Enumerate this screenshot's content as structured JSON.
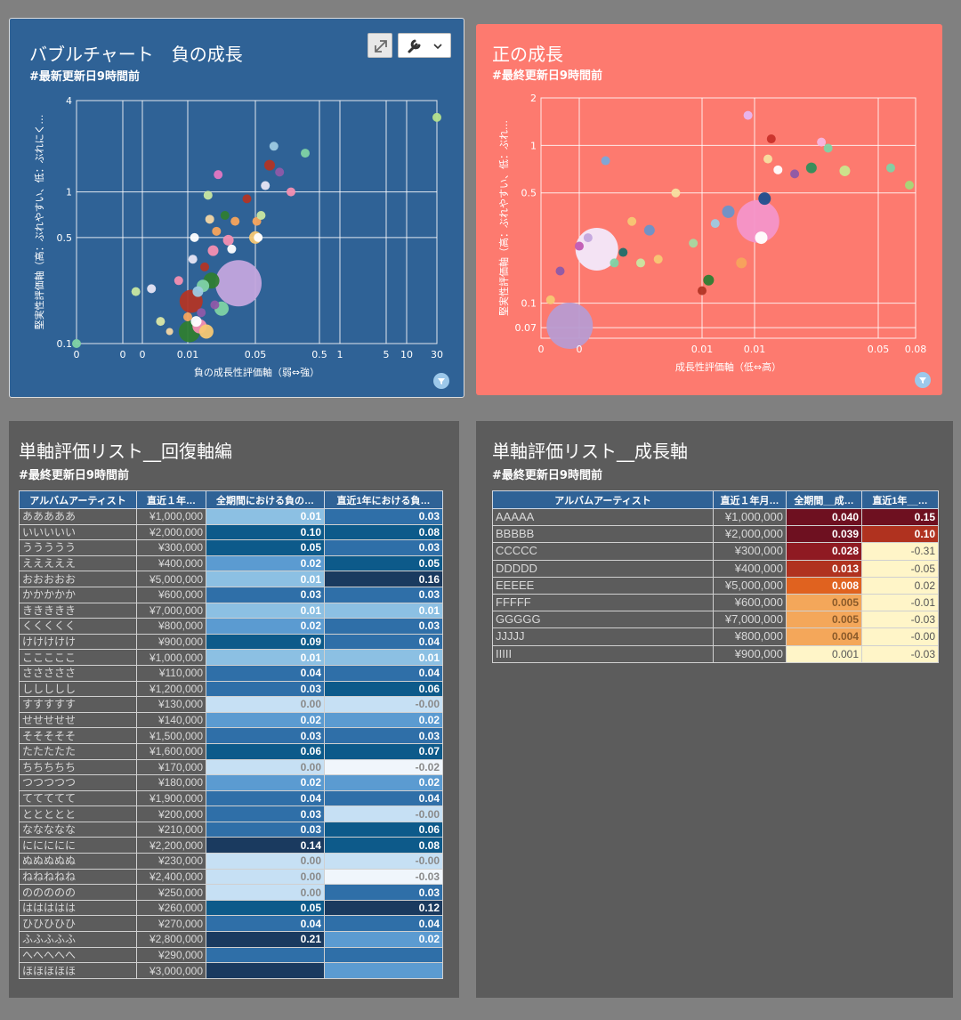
{
  "panels": {
    "negative": {
      "title": "バブルチャート　負の成長",
      "subtitle": "#最新更新日9時間前"
    },
    "positive": {
      "title": "正の成長",
      "subtitle": "#最終更新日9時間前"
    },
    "recovery": {
      "title": "単軸評価リスト__回復軸編",
      "subtitle": "#最終更新日9時間前"
    },
    "growth": {
      "title": "単軸評価リスト__成長軸",
      "subtitle": "#最終更新日9時間前"
    }
  },
  "icons": {
    "expand": "expand-icon",
    "wrench": "wrench-icon",
    "chevron": "chevron-down-icon",
    "filter": "filter-icon"
  },
  "chart_data": [
    {
      "type": "scatter",
      "title": "バブルチャート　負の成長",
      "xlabel": "負の成長性評価軸（弱⇔強）",
      "ylabel": "堅実性評価軸（高：ぶれやすい、低：ぶれにく…",
      "x_tick_labels": [
        "0",
        "0",
        "0",
        "0.01",
        "0.05",
        "0.5",
        "1",
        "5",
        "10",
        "30"
      ],
      "y_tick_labels": [
        "0.1",
        "0.5",
        "1",
        "4"
      ],
      "y_scale": "log",
      "grid": true,
      "background": "#2f6296",
      "points": [
        {
          "x": 0.0,
          "y": 0.1,
          "r": 5,
          "color": "#7fd3a4"
        },
        {
          "x": 0.004,
          "y": 0.22,
          "r": 5,
          "color": "#c9e7a1"
        },
        {
          "x": 0.006,
          "y": 0.23,
          "r": 5,
          "color": "#e7e5f4"
        },
        {
          "x": 0.007,
          "y": 0.14,
          "r": 5,
          "color": "#dbe7a6"
        },
        {
          "x": 0.008,
          "y": 0.12,
          "r": 4,
          "color": "#f3d6a4"
        },
        {
          "x": 0.009,
          "y": 0.26,
          "r": 5,
          "color": "#f48fb1"
        },
        {
          "x": 0.01,
          "y": 0.15,
          "r": 5,
          "color": "#f7a45c"
        },
        {
          "x": 0.011,
          "y": 0.12,
          "r": 12,
          "color": "#2f7d32"
        },
        {
          "x": 0.012,
          "y": 0.19,
          "r": 13,
          "color": "#b23525"
        },
        {
          "x": 0.013,
          "y": 0.36,
          "r": 5,
          "color": "#e7e5f4"
        },
        {
          "x": 0.014,
          "y": 0.5,
          "r": 5,
          "color": "#ffffff"
        },
        {
          "x": 0.015,
          "y": 0.14,
          "r": 6,
          "color": "#ffffff"
        },
        {
          "x": 0.016,
          "y": 0.22,
          "r": 6,
          "color": "#9ecae1"
        },
        {
          "x": 0.017,
          "y": 0.13,
          "r": 8,
          "color": "#f48fb1"
        },
        {
          "x": 0.018,
          "y": 0.16,
          "r": 5,
          "color": "#8e5aa8"
        },
        {
          "x": 0.019,
          "y": 0.24,
          "r": 7,
          "color": "#7fd3a4"
        },
        {
          "x": 0.02,
          "y": 0.32,
          "r": 5,
          "color": "#b23525"
        },
        {
          "x": 0.021,
          "y": 0.12,
          "r": 8,
          "color": "#f7c873"
        },
        {
          "x": 0.022,
          "y": 0.95,
          "r": 5,
          "color": "#c9e7a1"
        },
        {
          "x": 0.023,
          "y": 0.66,
          "r": 5,
          "color": "#f3d6a4"
        },
        {
          "x": 0.024,
          "y": 0.26,
          "r": 9,
          "color": "#2f7d32"
        },
        {
          "x": 0.025,
          "y": 0.41,
          "r": 6,
          "color": "#f48fb1"
        },
        {
          "x": 0.026,
          "y": 0.18,
          "r": 5,
          "color": "#8e5aa8"
        },
        {
          "x": 0.027,
          "y": 0.55,
          "r": 5,
          "color": "#f7a45c"
        },
        {
          "x": 0.028,
          "y": 1.3,
          "r": 5,
          "color": "#e377c2"
        },
        {
          "x": 0.03,
          "y": 0.17,
          "r": 8,
          "color": "#7fd3a4"
        },
        {
          "x": 0.032,
          "y": 0.7,
          "r": 5,
          "color": "#2f7d32"
        },
        {
          "x": 0.034,
          "y": 0.48,
          "r": 6,
          "color": "#f48fb1"
        },
        {
          "x": 0.036,
          "y": 0.42,
          "r": 5,
          "color": "#ffffff"
        },
        {
          "x": 0.038,
          "y": 0.64,
          "r": 5,
          "color": "#f7a45c"
        },
        {
          "x": 0.04,
          "y": 0.25,
          "r": 26,
          "color": "#c3a5dd"
        },
        {
          "x": 0.045,
          "y": 0.9,
          "r": 5,
          "color": "#b23525"
        },
        {
          "x": 0.05,
          "y": 0.5,
          "r": 7,
          "color": "#f7c873"
        },
        {
          "x": 0.06,
          "y": 0.64,
          "r": 5,
          "color": "#f7a45c"
        },
        {
          "x": 0.07,
          "y": 0.5,
          "r": 5,
          "color": "#ffffff"
        },
        {
          "x": 0.09,
          "y": 0.7,
          "r": 5,
          "color": "#c9e7a1"
        },
        {
          "x": 0.12,
          "y": 1.1,
          "r": 5,
          "color": "#e7e5f4"
        },
        {
          "x": 0.15,
          "y": 1.5,
          "r": 6,
          "color": "#b23525"
        },
        {
          "x": 0.18,
          "y": 2.0,
          "r": 5,
          "color": "#9ecae1"
        },
        {
          "x": 0.22,
          "y": 1.35,
          "r": 5,
          "color": "#8e5aa8"
        },
        {
          "x": 0.3,
          "y": 1.0,
          "r": 5,
          "color": "#f48fb1"
        },
        {
          "x": 0.4,
          "y": 1.8,
          "r": 5,
          "color": "#7fd3a4"
        },
        {
          "x": 30,
          "y": 3.1,
          "r": 5,
          "color": "#b5e28c"
        }
      ]
    },
    {
      "type": "scatter",
      "title": "正の成長",
      "xlabel": "成長性評価軸（低⇔高）",
      "ylabel": "堅実性評価軸（高：ぶれやすい、低：ぶれ…",
      "x_tick_labels": [
        "0",
        "0",
        "0.01",
        "0.01",
        "0.05",
        "0.08"
      ],
      "y_tick_labels": [
        "0.07",
        "0.1",
        "0.5",
        "1",
        "2"
      ],
      "y_scale": "log",
      "grid": true,
      "background": "#fd7a6f",
      "points": [
        {
          "x": 0.0005,
          "y": 0.105,
          "r": 5,
          "color": "#f7c873"
        },
        {
          "x": 0.001,
          "y": 0.16,
          "r": 5,
          "color": "#8e5aa8"
        },
        {
          "x": 0.0015,
          "y": 0.072,
          "r": 26,
          "color": "#b89bd1"
        },
        {
          "x": 0.002,
          "y": 0.23,
          "r": 5,
          "color": "#c158b3"
        },
        {
          "x": 0.0025,
          "y": 0.26,
          "r": 5,
          "color": "#c3a5dd"
        },
        {
          "x": 0.003,
          "y": 0.22,
          "r": 24,
          "color": "#f3e9fb"
        },
        {
          "x": 0.0035,
          "y": 0.8,
          "r": 5,
          "color": "#7aa9da"
        },
        {
          "x": 0.004,
          "y": 0.18,
          "r": 5,
          "color": "#7fd3a4"
        },
        {
          "x": 0.0045,
          "y": 0.21,
          "r": 5,
          "color": "#1f6f6a"
        },
        {
          "x": 0.005,
          "y": 0.33,
          "r": 5,
          "color": "#f7c873"
        },
        {
          "x": 0.0055,
          "y": 0.18,
          "r": 5,
          "color": "#c9e7a1"
        },
        {
          "x": 0.006,
          "y": 0.29,
          "r": 6,
          "color": "#6b93c9"
        },
        {
          "x": 0.0065,
          "y": 0.19,
          "r": 5,
          "color": "#f7c873"
        },
        {
          "x": 0.0075,
          "y": 0.5,
          "r": 5,
          "color": "#f7e0a0"
        },
        {
          "x": 0.0085,
          "y": 0.24,
          "r": 5,
          "color": "#a5d9a0"
        },
        {
          "x": 0.009,
          "y": 0.12,
          "r": 5,
          "color": "#b23525"
        },
        {
          "x": 0.0095,
          "y": 0.14,
          "r": 6,
          "color": "#2f7d32"
        },
        {
          "x": 0.01,
          "y": 0.32,
          "r": 5,
          "color": "#9ecae1"
        },
        {
          "x": 0.011,
          "y": 0.38,
          "r": 7,
          "color": "#6b93c9"
        },
        {
          "x": 0.012,
          "y": 0.18,
          "r": 6,
          "color": "#f7a45c"
        },
        {
          "x": 0.0125,
          "y": 1.55,
          "r": 5,
          "color": "#e7b6f0"
        },
        {
          "x": 0.014,
          "y": 0.33,
          "r": 24,
          "color": "#f495c9"
        },
        {
          "x": 0.015,
          "y": 0.26,
          "r": 7,
          "color": "#ffffff"
        },
        {
          "x": 0.016,
          "y": 0.46,
          "r": 7,
          "color": "#1f4f8f"
        },
        {
          "x": 0.017,
          "y": 0.82,
          "r": 5,
          "color": "#f7e0a0"
        },
        {
          "x": 0.018,
          "y": 1.1,
          "r": 5,
          "color": "#c9312a"
        },
        {
          "x": 0.02,
          "y": 0.7,
          "r": 5,
          "color": "#ffffff"
        },
        {
          "x": 0.025,
          "y": 0.66,
          "r": 5,
          "color": "#8e5aa8"
        },
        {
          "x": 0.03,
          "y": 0.72,
          "r": 6,
          "color": "#2f8f5a"
        },
        {
          "x": 0.033,
          "y": 1.05,
          "r": 5,
          "color": "#f7b6e0"
        },
        {
          "x": 0.035,
          "y": 0.96,
          "r": 5,
          "color": "#7fd3a4"
        },
        {
          "x": 0.04,
          "y": 0.69,
          "r": 6,
          "color": "#c9e78c"
        },
        {
          "x": 0.06,
          "y": 0.72,
          "r": 5,
          "color": "#7fd3a4"
        },
        {
          "x": 0.075,
          "y": 0.56,
          "r": 5,
          "color": "#a5d977"
        }
      ]
    }
  ],
  "recovery_table": {
    "headers": [
      "アルバムアーティスト",
      "直近１年…",
      "全期間における負の…",
      "直近1年における負…"
    ],
    "rows": [
      [
        "あああああ",
        "¥1,000,000",
        "0.01",
        "0.03"
      ],
      [
        "いいいいい",
        "¥2,000,000",
        "0.10",
        "0.08"
      ],
      [
        "ううううう",
        "¥300,000",
        "0.05",
        "0.03"
      ],
      [
        "えええええ",
        "¥400,000",
        "0.02",
        "0.05"
      ],
      [
        "おおおおお",
        "¥5,000,000",
        "0.01",
        "0.16"
      ],
      [
        "かかかかか",
        "¥600,000",
        "0.03",
        "0.03"
      ],
      [
        "ききききき",
        "¥7,000,000",
        "0.01",
        "0.01"
      ],
      [
        "くくくくく",
        "¥800,000",
        "0.02",
        "0.03"
      ],
      [
        "けけけけけ",
        "¥900,000",
        "0.09",
        "0.04"
      ],
      [
        "こここここ",
        "¥1,000,000",
        "0.01",
        "0.01"
      ],
      [
        "さささささ",
        "¥110,000",
        "0.04",
        "0.04"
      ],
      [
        "ししししし",
        "¥1,200,000",
        "0.03",
        "0.06"
      ],
      [
        "すすすすす",
        "¥130,000",
        "0.00",
        "-0.00"
      ],
      [
        "せせせせせ",
        "¥140,000",
        "0.02",
        "0.02"
      ],
      [
        "そそそそそ",
        "¥1,500,000",
        "0.03",
        "0.03"
      ],
      [
        "たたたたた",
        "¥1,600,000",
        "0.06",
        "0.07"
      ],
      [
        "ちちちちち",
        "¥170,000",
        "0.00",
        "-0.02"
      ],
      [
        "つつつつつ",
        "¥180,000",
        "0.02",
        "0.02"
      ],
      [
        "ててててて",
        "¥1,900,000",
        "0.04",
        "0.04"
      ],
      [
        "ととととと",
        "¥200,000",
        "0.03",
        "-0.00"
      ],
      [
        "ななななな",
        "¥210,000",
        "0.03",
        "0.06"
      ],
      [
        "ににににに",
        "¥2,200,000",
        "0.14",
        "0.08"
      ],
      [
        "ぬぬぬぬぬ",
        "¥230,000",
        "0.00",
        "-0.00"
      ],
      [
        "ねねねねね",
        "¥2,400,000",
        "0.00",
        "-0.03"
      ],
      [
        "ののののの",
        "¥250,000",
        "0.00",
        "0.03"
      ],
      [
        "ははははは",
        "¥260,000",
        "0.05",
        "0.12"
      ],
      [
        "ひひひひひ",
        "¥270,000",
        "0.04",
        "0.04"
      ],
      [
        "ふふふふふ",
        "¥2,800,000",
        "0.21",
        "0.02"
      ],
      [
        "へへへへへ",
        "¥290,000",
        "",
        ""
      ],
      [
        "ほほほほほ",
        "¥3,000,000",
        "",
        ""
      ]
    ],
    "colors": {
      "dark": "#1a3a5f",
      "strong": "#0d5a8a",
      "mid": "#2f6fa8",
      "light": "#5b9bd1",
      "pale": "#8cc0e3",
      "palest": "#c6e0f4",
      "white": "#f0f6fc"
    }
  },
  "growth_table": {
    "headers": [
      "アルバムアーティスト",
      "直近１年月…",
      "全期間__成…",
      "直近1年__…"
    ],
    "rows": [
      [
        "AAAAA",
        "¥1,000,000",
        "0.040",
        "0.15"
      ],
      [
        "BBBBB",
        "¥2,000,000",
        "0.039",
        "0.10"
      ],
      [
        "CCCCC",
        "¥300,000",
        "0.028",
        "-0.31"
      ],
      [
        "DDDDD",
        "¥400,000",
        "0.013",
        "-0.05"
      ],
      [
        "EEEEE",
        "¥5,000,000",
        "0.008",
        "0.02"
      ],
      [
        "FFFFF",
        "¥600,000",
        "0.005",
        "-0.01"
      ],
      [
        "GGGGG",
        "¥7,000,000",
        "0.005",
        "-0.03"
      ],
      [
        "JJJJJ",
        "¥800,000",
        "0.004",
        "-0.00"
      ],
      [
        "IIIII",
        "¥900,000",
        "0.001",
        "-0.03"
      ]
    ],
    "colors": {
      "darkest": "#6e1020",
      "dark": "#8f1a22",
      "red": "#b0321f",
      "orange": "#e0621f",
      "amber": "#f4a75a",
      "cream": "#fff5c8"
    }
  }
}
